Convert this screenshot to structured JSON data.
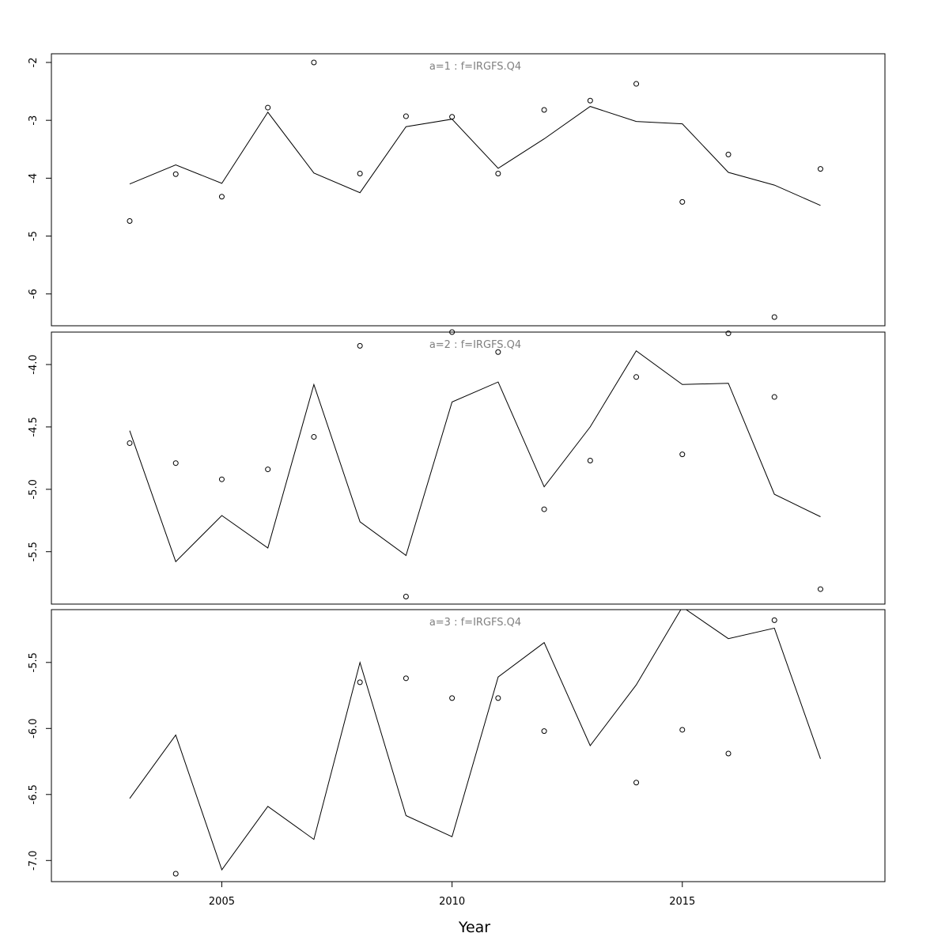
{
  "chart_data": {
    "type": "scatter",
    "x_axis": {
      "label": "Year",
      "range": [
        2001.3,
        2019.4
      ],
      "ticks": [
        2005,
        2010,
        2015
      ],
      "tick_labels": [
        "2005",
        "2010",
        "2015"
      ]
    },
    "grid": false,
    "panels": [
      {
        "title": "a=1 : f=IRGFS.Q4",
        "ylim": [
          -6.55,
          -1.85
        ],
        "yticks": [
          -2,
          -3,
          -4,
          -5,
          -6
        ],
        "ytick_labels": [
          "-2",
          "-3",
          "-4",
          "-5",
          "-6"
        ],
        "line": {
          "x": [
            2003,
            2004,
            2005,
            2006,
            2007,
            2008,
            2009,
            2010,
            2011,
            2012,
            2013,
            2014,
            2015,
            2016,
            2017,
            2018
          ],
          "y": [
            -4.1,
            -3.77,
            -4.09,
            -2.86,
            -3.91,
            -4.25,
            -3.11,
            -2.98,
            -3.83,
            -3.32,
            -2.76,
            -3.02,
            -3.06,
            -3.9,
            -4.12,
            -4.47
          ]
        },
        "points": {
          "x": [
            2003,
            2004,
            2005,
            2006,
            2007,
            2008,
            2009,
            2010,
            2011,
            2012,
            2013,
            2014,
            2015,
            2016,
            2017,
            2018
          ],
          "y": [
            -4.74,
            -3.93,
            -4.32,
            -2.78,
            -2.0,
            -3.92,
            -2.93,
            -2.94,
            -3.92,
            -2.82,
            -2.66,
            -2.37,
            -4.41,
            -3.59,
            -6.4,
            -3.84
          ]
        }
      },
      {
        "title": "a=2 : f=IRGFS.Q4",
        "ylim": [
          -5.92,
          -3.74
        ],
        "yticks": [
          -4.0,
          -4.5,
          -5.0,
          -5.5
        ],
        "ytick_labels": [
          "-4.0",
          "-4.5",
          "-5.0",
          "-5.5"
        ],
        "line": {
          "x": [
            2003,
            2004,
            2005,
            2006,
            2007,
            2008,
            2009,
            2010,
            2011,
            2012,
            2013,
            2014,
            2015,
            2016,
            2017,
            2018
          ],
          "y": [
            -4.53,
            -5.58,
            -5.21,
            -5.47,
            -4.16,
            -5.26,
            -5.53,
            -4.3,
            -4.14,
            -4.98,
            -4.5,
            -3.89,
            -4.16,
            -4.15,
            -5.04,
            -5.22
          ]
        },
        "points": {
          "x": [
            2003,
            2004,
            2005,
            2006,
            2007,
            2008,
            2009,
            2010,
            2011,
            2012,
            2013,
            2014,
            2015,
            2016,
            2017,
            2018
          ],
          "y": [
            -4.63,
            -4.79,
            -4.92,
            -4.84,
            -4.58,
            -3.85,
            -5.86,
            -3.74,
            -3.9,
            -5.16,
            -4.77,
            -4.1,
            -4.72,
            -3.75,
            -4.26,
            -5.8
          ]
        }
      },
      {
        "title": "a=3 : f=IRGFS.Q4",
        "ylim": [
          -7.16,
          -5.1
        ],
        "yticks": [
          -5.5,
          -6.0,
          -6.5,
          -7.0
        ],
        "ytick_labels": [
          "-5.5",
          "-6.0",
          "-6.5",
          "-7.0"
        ],
        "line": {
          "x": [
            2003,
            2004,
            2005,
            2006,
            2007,
            2008,
            2009,
            2010,
            2011,
            2012,
            2013,
            2014,
            2015,
            2016,
            2017,
            2018
          ],
          "y": [
            -6.53,
            -6.05,
            -7.07,
            -6.59,
            -6.84,
            -5.5,
            -6.66,
            -6.82,
            -5.61,
            -5.35,
            -6.13,
            -5.67,
            -5.08,
            -5.32,
            -5.24,
            -6.23
          ]
        },
        "points": {
          "x": [
            2004,
            2008,
            2009,
            2010,
            2011,
            2012,
            2014,
            2015,
            2016,
            2017
          ],
          "y": [
            -7.1,
            -5.65,
            -5.62,
            -5.77,
            -5.77,
            -6.02,
            -6.41,
            -6.01,
            -6.19,
            -5.18
          ]
        }
      }
    ]
  }
}
